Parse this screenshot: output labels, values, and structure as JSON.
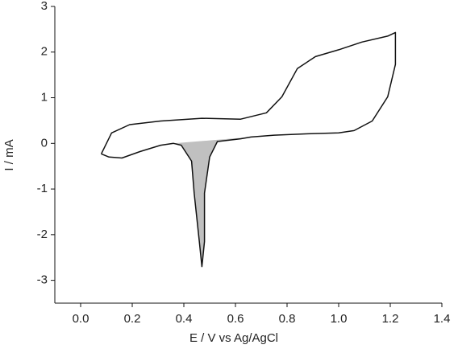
{
  "chart_data": {
    "type": "line",
    "xlabel": "E / V vs Ag/AgCl",
    "ylabel": "I / mA",
    "xlim": [
      -0.1,
      1.4
    ],
    "ylim": [
      -3.5,
      3
    ],
    "xticks": [
      {
        "value": 0.0,
        "label": "0.0"
      },
      0.2,
      0.4,
      0.6,
      0.8,
      {
        "value": 1.0,
        "label": "1.0"
      },
      1.2,
      1.4
    ],
    "yticks": [
      -3,
      -2,
      -1,
      0,
      1,
      2,
      3
    ],
    "series": [
      {
        "color": "#111111",
        "x": [
          0.08,
          0.12,
          0.19,
          0.31,
          0.47,
          0.62,
          0.72,
          0.78,
          0.84,
          0.91,
          1.0,
          1.09,
          1.19,
          1.22,
          1.22,
          1.19,
          1.13,
          1.06,
          1.0,
          0.88,
          0.75,
          0.66,
          0.62,
          0.53,
          0.5,
          0.48,
          0.48,
          0.47,
          0.46,
          0.44,
          0.43,
          0.39,
          0.36,
          0.31,
          0.23,
          0.16,
          0.11,
          0.08
        ],
        "values": [
          -0.23,
          0.23,
          0.41,
          0.49,
          0.55,
          0.53,
          0.67,
          1.02,
          1.64,
          1.9,
          2.05,
          2.22,
          2.35,
          2.43,
          1.73,
          1.02,
          0.49,
          0.28,
          0.23,
          0.21,
          0.18,
          0.14,
          0.1,
          0.04,
          -0.3,
          -1.09,
          -2.15,
          -2.7,
          -2.15,
          -1.09,
          -0.39,
          -0.04,
          0.0,
          -0.04,
          -0.18,
          -0.32,
          -0.3,
          -0.23
        ]
      }
    ],
    "shaded_region": {
      "color": "#c0c0c0",
      "x": [
        0.66,
        0.62,
        0.53,
        0.5,
        0.48,
        0.48,
        0.47,
        0.46,
        0.44,
        0.43,
        0.39,
        0.36
      ],
      "values": [
        0.14,
        0.1,
        0.04,
        -0.3,
        -1.09,
        -2.15,
        -2.7,
        -2.15,
        -1.09,
        -0.39,
        -0.04,
        0.0
      ]
    }
  }
}
